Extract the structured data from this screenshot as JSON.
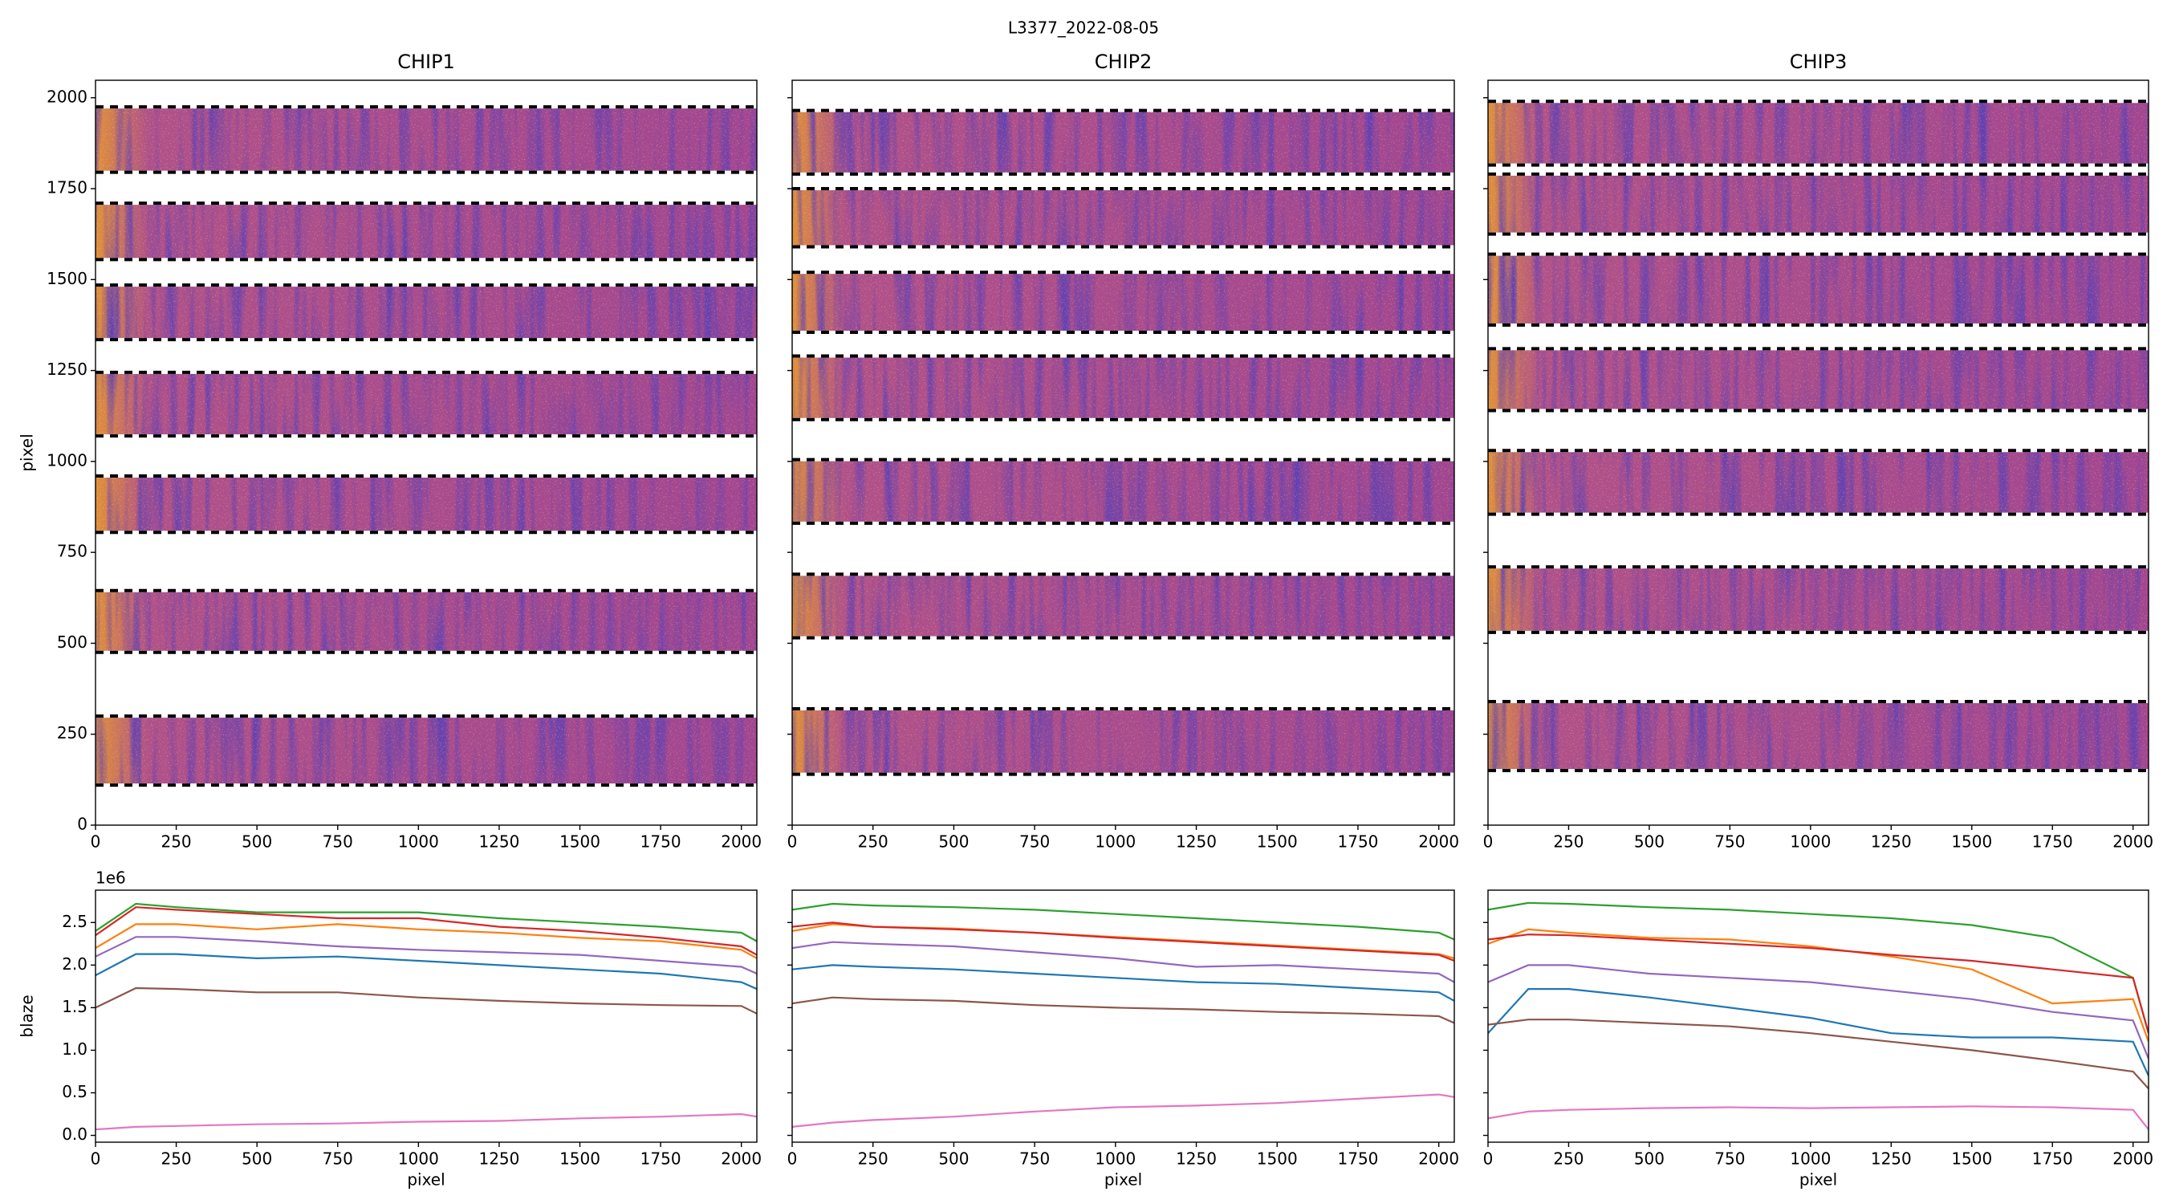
{
  "title": "L3377_2022-08-05",
  "chart_data": [
    {
      "type": "image",
      "title": "CHIP1",
      "ylabel": "pixel",
      "xlim": [
        0,
        2048
      ],
      "ylim": [
        0,
        2048
      ],
      "xticks": [
        0,
        250,
        500,
        750,
        1000,
        1250,
        1500,
        1750,
        2000
      ],
      "yticks": [
        0,
        250,
        500,
        750,
        1000,
        1250,
        1500,
        1750,
        2000
      ],
      "ytick_labels": true,
      "orders": [
        [
          1795,
          1975
        ],
        [
          1555,
          1710
        ],
        [
          1335,
          1485
        ],
        [
          1070,
          1245
        ],
        [
          805,
          960
        ],
        [
          475,
          645
        ],
        [
          110,
          300
        ]
      ]
    },
    {
      "type": "image",
      "title": "CHIP2",
      "xlim": [
        0,
        2048
      ],
      "ylim": [
        0,
        2048
      ],
      "xticks": [
        0,
        250,
        500,
        750,
        1000,
        1250,
        1500,
        1750,
        2000
      ],
      "yticks": [
        0,
        250,
        500,
        750,
        1000,
        1250,
        1500,
        1750,
        2000
      ],
      "ytick_labels": false,
      "orders": [
        [
          1790,
          1965
        ],
        [
          1590,
          1750
        ],
        [
          1355,
          1520
        ],
        [
          1115,
          1290
        ],
        [
          830,
          1005
        ],
        [
          515,
          690
        ],
        [
          140,
          320
        ]
      ]
    },
    {
      "type": "image",
      "title": "CHIP3",
      "xlim": [
        0,
        2048
      ],
      "ylim": [
        0,
        2048
      ],
      "xticks": [
        0,
        250,
        500,
        750,
        1000,
        1250,
        1500,
        1750,
        2000
      ],
      "yticks": [
        0,
        250,
        500,
        750,
        1000,
        1250,
        1500,
        1750,
        2000
      ],
      "ytick_labels": false,
      "orders": [
        [
          1815,
          1990
        ],
        [
          1625,
          1790
        ],
        [
          1375,
          1570
        ],
        [
          1140,
          1310
        ],
        [
          855,
          1030
        ],
        [
          530,
          710
        ],
        [
          150,
          340
        ]
      ]
    },
    {
      "type": "line",
      "xlabel": "pixel",
      "ylabel": "blaze",
      "offset_label": "1e6",
      "xlim": [
        0,
        2048
      ],
      "ylim": [
        -0.08,
        2.88
      ],
      "xticks": [
        0,
        250,
        500,
        750,
        1000,
        1250,
        1500,
        1750,
        2000
      ],
      "yticks": [
        {
          "value": 0,
          "label": "0.0"
        },
        0.5,
        {
          "value": 1,
          "label": "1.0"
        },
        1.5,
        {
          "value": 2,
          "label": "2.0"
        },
        2.5
      ],
      "ytick_labels": true,
      "x": [
        0,
        125,
        250,
        500,
        750,
        1000,
        1250,
        1500,
        1750,
        2000,
        2048
      ],
      "series": [
        {
          "color": "#1f77b4",
          "values": [
            1.88,
            2.13,
            2.13,
            2.08,
            2.1,
            2.05,
            2.0,
            1.95,
            1.9,
            1.8,
            1.72
          ]
        },
        {
          "color": "#ff7f0e",
          "values": [
            2.2,
            2.48,
            2.48,
            2.42,
            2.48,
            2.42,
            2.38,
            2.32,
            2.28,
            2.18,
            2.08
          ]
        },
        {
          "color": "#2ca02c",
          "values": [
            2.4,
            2.72,
            2.68,
            2.62,
            2.62,
            2.62,
            2.55,
            2.5,
            2.45,
            2.38,
            2.28
          ]
        },
        {
          "color": "#d62728",
          "values": [
            2.35,
            2.68,
            2.65,
            2.6,
            2.55,
            2.55,
            2.45,
            2.4,
            2.32,
            2.22,
            2.12
          ]
        },
        {
          "color": "#9467bd",
          "values": [
            2.1,
            2.33,
            2.33,
            2.28,
            2.22,
            2.18,
            2.15,
            2.12,
            2.05,
            1.98,
            1.9
          ]
        },
        {
          "color": "#8c564b",
          "values": [
            1.5,
            1.73,
            1.72,
            1.68,
            1.68,
            1.62,
            1.58,
            1.55,
            1.53,
            1.52,
            1.43
          ]
        },
        {
          "color": "#e377c2",
          "values": [
            0.07,
            0.1,
            0.11,
            0.13,
            0.14,
            0.16,
            0.17,
            0.2,
            0.22,
            0.25,
            0.22
          ]
        }
      ]
    },
    {
      "type": "line",
      "xlabel": "pixel",
      "xlim": [
        0,
        2048
      ],
      "ylim": [
        -0.08,
        2.88
      ],
      "xticks": [
        0,
        250,
        500,
        750,
        1000,
        1250,
        1500,
        1750,
        2000
      ],
      "yticks": [
        0,
        0.5,
        1,
        1.5,
        2,
        2.5
      ],
      "ytick_labels": false,
      "x": [
        0,
        125,
        250,
        500,
        750,
        1000,
        1250,
        1500,
        1750,
        2000,
        2048
      ],
      "series": [
        {
          "color": "#1f77b4",
          "values": [
            1.95,
            2.0,
            1.98,
            1.95,
            1.9,
            1.85,
            1.8,
            1.78,
            1.73,
            1.68,
            1.58
          ]
        },
        {
          "color": "#ff7f0e",
          "values": [
            2.4,
            2.48,
            2.45,
            2.43,
            2.38,
            2.33,
            2.28,
            2.23,
            2.18,
            2.13,
            2.08
          ]
        },
        {
          "color": "#2ca02c",
          "values": [
            2.65,
            2.72,
            2.7,
            2.68,
            2.65,
            2.6,
            2.55,
            2.5,
            2.45,
            2.38,
            2.3
          ]
        },
        {
          "color": "#d62728",
          "values": [
            2.45,
            2.5,
            2.45,
            2.42,
            2.38,
            2.32,
            2.27,
            2.22,
            2.17,
            2.12,
            2.05
          ]
        },
        {
          "color": "#9467bd",
          "values": [
            2.2,
            2.27,
            2.25,
            2.22,
            2.15,
            2.08,
            1.98,
            2.0,
            1.95,
            1.9,
            1.8
          ]
        },
        {
          "color": "#8c564b",
          "values": [
            1.55,
            1.62,
            1.6,
            1.58,
            1.53,
            1.5,
            1.48,
            1.45,
            1.43,
            1.4,
            1.32
          ]
        },
        {
          "color": "#e377c2",
          "values": [
            0.1,
            0.15,
            0.18,
            0.22,
            0.28,
            0.33,
            0.35,
            0.38,
            0.43,
            0.48,
            0.45
          ]
        }
      ]
    },
    {
      "type": "line",
      "xlabel": "pixel",
      "xlim": [
        0,
        2048
      ],
      "ylim": [
        -0.08,
        2.88
      ],
      "xticks": [
        0,
        250,
        500,
        750,
        1000,
        1250,
        1500,
        1750,
        2000
      ],
      "yticks": [
        0,
        0.5,
        1,
        1.5,
        2,
        2.5
      ],
      "ytick_labels": false,
      "x": [
        0,
        125,
        250,
        500,
        750,
        1000,
        1250,
        1500,
        1750,
        2000,
        2048
      ],
      "series": [
        {
          "color": "#1f77b4",
          "values": [
            1.2,
            1.72,
            1.72,
            1.62,
            1.5,
            1.38,
            1.2,
            1.15,
            1.15,
            1.1,
            0.7
          ]
        },
        {
          "color": "#ff7f0e",
          "values": [
            2.25,
            2.42,
            2.38,
            2.32,
            2.3,
            2.22,
            2.1,
            1.95,
            1.55,
            1.6,
            1.1
          ]
        },
        {
          "color": "#2ca02c",
          "values": [
            2.65,
            2.73,
            2.72,
            2.68,
            2.65,
            2.6,
            2.55,
            2.47,
            2.32,
            1.85,
            1.2
          ]
        },
        {
          "color": "#d62728",
          "values": [
            2.3,
            2.36,
            2.35,
            2.3,
            2.25,
            2.2,
            2.12,
            2.05,
            1.95,
            1.85,
            1.2
          ]
        },
        {
          "color": "#9467bd",
          "values": [
            1.8,
            2.0,
            2.0,
            1.9,
            1.85,
            1.8,
            1.7,
            1.6,
            1.45,
            1.35,
            0.9
          ]
        },
        {
          "color": "#8c564b",
          "values": [
            1.3,
            1.36,
            1.36,
            1.32,
            1.28,
            1.2,
            1.1,
            1.0,
            0.88,
            0.75,
            0.55
          ]
        },
        {
          "color": "#e377c2",
          "values": [
            0.2,
            0.28,
            0.3,
            0.32,
            0.33,
            0.32,
            0.33,
            0.34,
            0.33,
            0.3,
            0.07
          ]
        }
      ]
    }
  ]
}
